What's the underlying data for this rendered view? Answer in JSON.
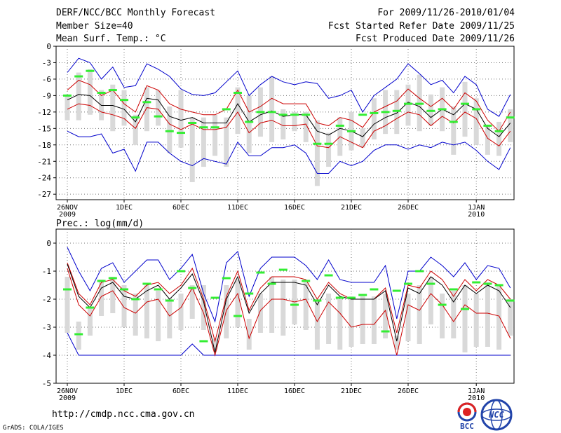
{
  "header": {
    "title": "DERF/NCC/BCC Monthly Forecast",
    "member_size": "Member Size=40",
    "variable_label": "Mean Surf. Temp.: °C",
    "period": "For 2009/11/26-2010/01/04",
    "fcst_started": "Fcst Started Refer Date 2009/11/25",
    "fcst_produced": "Fcst Produced Date 2009/11/26"
  },
  "footer": {
    "url": "http://cmdp.ncc.cma.gov.cn",
    "grads_credit": "GrADS: COLA/IGES",
    "logo_bcc_text": "BCC",
    "logo_ncc_text": "NCC"
  },
  "colors": {
    "max_min_line": "#0000cc",
    "percentile_line": "#cc0000",
    "median_line": "#000000",
    "spread_bar": "#d9d9d9",
    "observed_mark": "#33ee33",
    "grid": "#777777"
  },
  "chart_data": [
    {
      "type": "line",
      "title": "Mean Surf. Temp.: °C",
      "ylim": [
        -28,
        0
      ],
      "yticks": [
        0,
        -3,
        -6,
        -9,
        -12,
        -15,
        -18,
        -21,
        -24,
        -27
      ],
      "xlim": [
        0,
        39
      ],
      "xticks": [
        {
          "day": 0,
          "label": "26NOV",
          "sub": "2009"
        },
        {
          "day": 5,
          "label": "1DEC",
          "sub": ""
        },
        {
          "day": 10,
          "label": "6DEC",
          "sub": ""
        },
        {
          "day": 15,
          "label": "11DEC",
          "sub": ""
        },
        {
          "day": 20,
          "label": "16DEC",
          "sub": ""
        },
        {
          "day": 25,
          "label": "21DEC",
          "sub": ""
        },
        {
          "day": 30,
          "label": "26DEC",
          "sub": ""
        },
        {
          "day": 36,
          "label": "1JAN",
          "sub": "2010"
        }
      ],
      "max": [
        -4.8,
        -2.2,
        -3.0,
        -6.0,
        -3.8,
        -7.5,
        -7.2,
        -3.2,
        -4.2,
        -5.5,
        -7.8,
        -8.8,
        -9.0,
        -8.5,
        -6.5,
        -4.5,
        -9.0,
        -7.0,
        -5.5,
        -6.5,
        -7.0,
        -6.5,
        -6.8,
        -9.5,
        -9.0,
        -8.0,
        -12.0,
        -9.0,
        -7.5,
        -6.0,
        -3.2,
        -5.0,
        -7.0,
        -6.2,
        -8.5,
        -5.5,
        -7.0,
        -11.5,
        -12.8,
        -8.8
      ],
      "p90": [
        -8.0,
        -6.2,
        -7.0,
        -9.0,
        -8.0,
        -10.5,
        -12.0,
        -7.2,
        -8.0,
        -10.5,
        -11.5,
        -12.0,
        -12.5,
        -12.5,
        -11.5,
        -8.0,
        -12.0,
        -11.0,
        -9.5,
        -10.5,
        -10.5,
        -10.5,
        -14.0,
        -14.5,
        -13.0,
        -13.5,
        -14.8,
        -12.0,
        -11.0,
        -10.0,
        -7.8,
        -9.5,
        -11.0,
        -9.5,
        -11.5,
        -8.5,
        -10.0,
        -13.5,
        -15.5,
        -12.0
      ],
      "median": [
        -9.8,
        -8.8,
        -9.0,
        -10.8,
        -10.8,
        -11.5,
        -13.8,
        -9.5,
        -9.8,
        -12.8,
        -13.5,
        -13.0,
        -14.0,
        -14.0,
        -14.0,
        -10.5,
        -13.8,
        -12.5,
        -11.8,
        -12.8,
        -12.5,
        -12.5,
        -15.5,
        -16.2,
        -15.0,
        -15.5,
        -16.5,
        -14.2,
        -13.0,
        -12.2,
        -10.2,
        -11.0,
        -13.0,
        -11.5,
        -12.5,
        -10.5,
        -11.5,
        -15.0,
        -16.5,
        -14.0
      ],
      "p10": [
        -11.5,
        -10.5,
        -10.8,
        -12.0,
        -12.5,
        -13.2,
        -15.0,
        -11.2,
        -11.5,
        -14.2,
        -15.2,
        -14.2,
        -15.2,
        -15.2,
        -14.8,
        -12.0,
        -15.8,
        -14.0,
        -13.5,
        -14.5,
        -14.5,
        -14.2,
        -18.2,
        -18.5,
        -16.5,
        -17.5,
        -18.5,
        -15.5,
        -14.5,
        -13.2,
        -12.0,
        -12.5,
        -14.5,
        -12.8,
        -14.0,
        -12.0,
        -13.2,
        -16.8,
        -18.2,
        -15.5
      ],
      "min": [
        -15.5,
        -16.5,
        -16.5,
        -16.0,
        -19.5,
        -18.8,
        -22.8,
        -17.5,
        -17.5,
        -19.5,
        -21.0,
        -21.8,
        -20.5,
        -21.0,
        -21.5,
        -17.5,
        -20.0,
        -20.0,
        -18.5,
        -18.5,
        -18.0,
        -19.5,
        -23.2,
        -23.2,
        -21.0,
        -21.8,
        -21.0,
        -19.0,
        -18.0,
        -18.0,
        -18.8,
        -18.0,
        -18.5,
        -17.5,
        -18.0,
        -17.5,
        -19.0,
        -21.0,
        -22.5,
        -18.5
      ],
      "spread_high": [
        -8.8,
        -4.8,
        -4.2,
        -8.0,
        -7.0,
        -8.0,
        -12.5,
        -7.5,
        -8.0,
        -11.0,
        -8.0,
        -13.0,
        -13.0,
        -12.5,
        -13.0,
        -7.5,
        -9.0,
        -7.5,
        -5.5,
        -11.5,
        -12.0,
        -12.0,
        -13.5,
        -15.8,
        -13.0,
        -12.0,
        -15.0,
        -9.5,
        -8.0,
        -8.0,
        -7.0,
        -5.2,
        -8.8,
        -7.5,
        -11.0,
        -6.5,
        -9.5,
        -14.5,
        -13.8,
        -11.5
      ],
      "spread_low": [
        -13.5,
        -13.5,
        -12.5,
        -13.5,
        -15.5,
        -14.5,
        -18.0,
        -15.5,
        -14.5,
        -19.5,
        -18.5,
        -24.8,
        -22.0,
        -20.0,
        -22.0,
        -16.0,
        -19.5,
        -16.5,
        -17.5,
        -17.0,
        -15.5,
        -17.5,
        -25.5,
        -22.0,
        -20.0,
        -19.0,
        -18.5,
        -17.0,
        -16.0,
        -16.0,
        -14.5,
        -15.5,
        -14.5,
        -15.5,
        -19.8,
        -16.5,
        -18.0,
        -19.8,
        -20.0,
        -17.5
      ],
      "observed": [
        -9.0,
        -5.5,
        -4.5,
        -8.5,
        -8.0,
        -9.8,
        -13.0,
        -10.2,
        -12.8,
        -15.5,
        -15.8,
        -14.0,
        -14.8,
        -14.8,
        -11.5,
        -8.5,
        -13.8,
        -12.0,
        -12.0,
        -12.5,
        -12.5,
        -12.5,
        -17.8,
        -17.8,
        -14.5,
        -15.5,
        -12.5,
        -12.2,
        -12.0,
        -11.8,
        -10.5,
        -10.5,
        -11.8,
        -11.5,
        -13.8,
        -10.5,
        -11.5,
        -14.5,
        -15.5,
        -13.0
      ]
    },
    {
      "type": "line",
      "title": "Prec.: log(mm/d)",
      "ylim": [
        -5,
        0.5
      ],
      "yticks": [
        0,
        -1,
        -2,
        -3,
        -4,
        -5
      ],
      "xlim": [
        0,
        39
      ],
      "xticks": [
        {
          "day": 0,
          "label": "26NOV",
          "sub": "2009"
        },
        {
          "day": 5,
          "label": "1DEC",
          "sub": ""
        },
        {
          "day": 10,
          "label": "6DEC",
          "sub": ""
        },
        {
          "day": 15,
          "label": "11DEC",
          "sub": ""
        },
        {
          "day": 20,
          "label": "16DEC",
          "sub": ""
        },
        {
          "day": 25,
          "label": "21DEC",
          "sub": ""
        },
        {
          "day": 30,
          "label": "26DEC",
          "sub": ""
        },
        {
          "day": 36,
          "label": "1JAN",
          "sub": "2010"
        }
      ],
      "max": [
        -0.15,
        -1.0,
        -1.7,
        -0.9,
        -0.7,
        -1.4,
        -1.0,
        -0.6,
        -0.6,
        -1.3,
        -0.9,
        -0.4,
        -1.8,
        -2.8,
        -0.7,
        -0.3,
        -1.9,
        -0.9,
        -0.5,
        -0.5,
        -0.5,
        -0.8,
        -1.3,
        -0.6,
        -1.3,
        -1.4,
        -1.4,
        -1.4,
        -0.8,
        -2.7,
        -1.0,
        -1.0,
        -0.5,
        -0.8,
        -1.2,
        -0.7,
        -1.3,
        -0.8,
        -0.9,
        -1.6
      ],
      "p90": [
        -0.7,
        -1.8,
        -2.2,
        -1.4,
        -1.3,
        -1.7,
        -1.9,
        -1.5,
        -1.4,
        -1.8,
        -1.5,
        -0.9,
        -2.0,
        -3.5,
        -1.9,
        -1.0,
        -2.4,
        -1.6,
        -1.2,
        -1.2,
        -1.2,
        -1.3,
        -2.0,
        -1.4,
        -1.8,
        -2.0,
        -2.0,
        -2.0,
        -1.6,
        -3.2,
        -1.5,
        -1.6,
        -1.0,
        -1.3,
        -1.9,
        -1.3,
        -1.7,
        -1.3,
        -1.5,
        -2.0
      ],
      "median": [
        -0.75,
        -1.9,
        -2.3,
        -1.6,
        -1.4,
        -1.9,
        -2.0,
        -1.7,
        -1.5,
        -2.0,
        -1.6,
        -1.1,
        -2.1,
        -3.9,
        -2.0,
        -1.2,
        -2.5,
        -1.8,
        -1.4,
        -1.4,
        -1.4,
        -1.5,
        -2.2,
        -1.5,
        -1.9,
        -2.0,
        -2.0,
        -2.0,
        -1.7,
        -3.5,
        -1.6,
        -1.8,
        -1.2,
        -1.5,
        -2.1,
        -1.5,
        -1.8,
        -1.5,
        -1.7,
        -2.3
      ],
      "p10": [
        -0.9,
        -2.2,
        -2.6,
        -1.9,
        -1.7,
        -2.3,
        -2.5,
        -2.1,
        -2.0,
        -2.6,
        -2.3,
        -1.6,
        -2.5,
        -4.0,
        -2.4,
        -1.8,
        -3.4,
        -2.4,
        -2.0,
        -2.0,
        -2.1,
        -2.0,
        -2.8,
        -2.1,
        -2.5,
        -3.0,
        -2.9,
        -2.9,
        -2.4,
        -4.0,
        -2.2,
        -2.4,
        -1.8,
        -2.2,
        -2.8,
        -2.2,
        -2.5,
        -2.5,
        -2.6,
        -3.4
      ],
      "min": [
        -3.2,
        -4.0,
        -4.0,
        -4.0,
        -4.0,
        -4.0,
        -4.0,
        -4.0,
        -4.0,
        -4.0,
        -4.0,
        -3.6,
        -4.0,
        -4.0,
        -4.0,
        -4.0,
        -4.0,
        -4.0,
        -4.0,
        -4.0,
        -4.0,
        -4.0,
        -4.0,
        -4.0,
        -4.0,
        -4.0,
        -4.0,
        -4.0,
        -4.0,
        -4.0,
        -4.0,
        -4.0,
        -4.0,
        -4.0,
        -4.0,
        -4.0,
        -4.0,
        -4.0,
        -4.0,
        -4.0
      ],
      "spread_high": [
        -1.2,
        -2.8,
        -2.3,
        -1.3,
        -1.2,
        -1.5,
        -1.8,
        -1.5,
        -1.7,
        -2.0,
        -1.8,
        -1.5,
        -1.5,
        -3.4,
        -1.5,
        -1.3,
        -2.7,
        -1.8,
        -1.2,
        -1.3,
        -1.3,
        -1.4,
        -2.0,
        -1.8,
        -2.0,
        -1.9,
        -1.9,
        -1.9,
        -1.8,
        -3.3,
        -1.8,
        -1.5,
        -1.2,
        -1.8,
        -1.7,
        -1.5,
        -1.8,
        -1.4,
        -1.5,
        -2.0
      ],
      "spread_low": [
        -3.2,
        -3.8,
        -3.3,
        -2.6,
        -2.5,
        -3.0,
        -3.3,
        -3.4,
        -3.5,
        -3.4,
        -3.1,
        -2.7,
        -3.1,
        -3.8,
        -3.4,
        -3.0,
        -3.8,
        -3.2,
        -3.2,
        -3.3,
        -2.9,
        -3.1,
        -3.8,
        -3.6,
        -3.8,
        -3.7,
        -3.6,
        -3.6,
        -3.4,
        -3.8,
        -3.5,
        -3.6,
        -2.9,
        -3.4,
        -3.4,
        -3.9,
        -3.7,
        -3.7,
        -3.8,
        -3.3
      ],
      "observed": [
        -1.65,
        -3.25,
        -2.3,
        -1.35,
        -1.25,
        -1.65,
        -2.0,
        -1.45,
        -1.65,
        -2.05,
        -1.0,
        -1.6,
        -3.5,
        -1.95,
        -1.25,
        -2.6,
        -1.8,
        -1.05,
        -1.45,
        -0.95,
        -2.2,
        -1.35,
        -2.05,
        -1.15,
        -1.95,
        -1.95,
        -1.85,
        -1.65,
        -3.15,
        -1.7,
        -1.45,
        -1.0,
        -1.45,
        -2.2,
        -1.65,
        -2.35,
        -1.4,
        -1.45,
        -1.5,
        -2.05
      ]
    }
  ]
}
